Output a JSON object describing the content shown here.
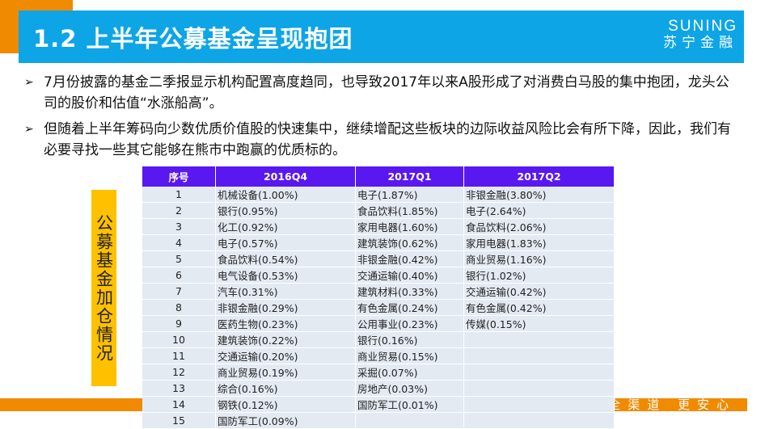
{
  "header": {
    "title": "1.2 上半年公募基金呈现抱团",
    "logo_en": "SUNING",
    "logo_cn": "苏宁金融"
  },
  "bullets": [
    "7月份披露的基金二季报显示机构配置高度趋同，也导致2017年以来A股形成了对消费白马股的集中抱团，龙头公司的股价和估值“水涨船高”。",
    "但随着上半年筹码向少数优质价值股的快速集中，继续增配这些板块的边际收益风险比会有所下降，因此，我们有必要寻找一些其它能够在熊市中跑赢的优质标的。"
  ],
  "side_label": "公募基金加仓情况",
  "table": {
    "headers": [
      "序号",
      "2016Q4",
      "2017Q1",
      "2017Q2"
    ],
    "rows": [
      [
        "1",
        "机械设备(1.00%)",
        "电子(1.87%)",
        "非银金融(3.80%)"
      ],
      [
        "2",
        "银行(0.95%)",
        "食品饮料(1.85%)",
        "电子(2.64%)"
      ],
      [
        "3",
        "化工(0.92%)",
        "家用电器(1.60%)",
        "食品饮料(2.06%)"
      ],
      [
        "4",
        "电子(0.57%)",
        "建筑装饰(0.62%)",
        "家用电器(1.83%)"
      ],
      [
        "5",
        "食品饮料(0.54%)",
        "非银金融(0.42%)",
        "商业贸易(1.16%)"
      ],
      [
        "6",
        "电气设备(0.53%)",
        "交通运输(0.40%)",
        "银行(1.02%)"
      ],
      [
        "7",
        "汽车(0.31%)",
        "建筑材料(0.33%)",
        "交通运输(0.42%)"
      ],
      [
        "8",
        "非银金融(0.29%)",
        "有色金属(0.24%)",
        "有色金属(0.42%)"
      ],
      [
        "9",
        "医药生物(0.23%)",
        "公用事业(0.23%)",
        "传媒(0.15%)"
      ],
      [
        "10",
        "建筑装饰(0.22%)",
        "银行(0.16%)",
        ""
      ],
      [
        "11",
        "交通运输(0.20%)",
        "商业贸易(0.15%)",
        ""
      ],
      [
        "12",
        "商业贸易(0.19%)",
        "采掘(0.07%)",
        ""
      ],
      [
        "13",
        "综合(0.16%)",
        "房地产(0.03%)",
        ""
      ],
      [
        "14",
        "钢铁(0.12%)",
        "国防军工(0.01%)",
        ""
      ],
      [
        "15",
        "国防军工(0.09%)",
        "",
        ""
      ]
    ]
  },
  "footer": {
    "slogan": "全渠道 更安心"
  },
  "colors": {
    "orange": "#f08a00",
    "blue": "#0ea5e6",
    "header_purple": "#5a18f0",
    "label_yellow": "#ffc000"
  }
}
